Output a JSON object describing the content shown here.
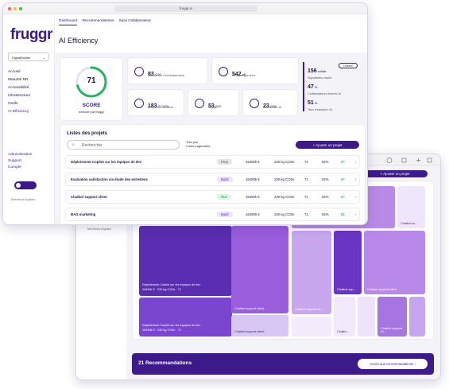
{
  "front": {
    "url": "fruggr.io",
    "tabs": [
      "Dashboard",
      "Recommendations",
      "Suivi Collaborateur"
    ],
    "logo": "fruggr",
    "org": "DigitalBuilder",
    "menu": [
      "Accueil",
      "Maturité NR",
      "Accessibilité",
      "Infrastructure",
      "Outils",
      "AI Efficiency"
    ],
    "footer_menu": [
      "Administration",
      "Support",
      "Compte"
    ],
    "legal": "Mentions légales",
    "title": "AI Efficiency",
    "score": {
      "value": "71",
      "label": "SCORE",
      "caption": "mesuré par fruggr"
    },
    "stats": [
      {
        "value": "83",
        "unit": "/100",
        "label": "Niveau sur l'investissement"
      },
      {
        "value": "542",
        "unit": "k€",
        "label": "Coûts engendrés"
      },
      {
        "value": "183",
        "unit": "T CO2e",
        "label": "Empreinte carbone"
      },
      {
        "value": "53",
        "unit": "/100",
        "label": "Usage"
      },
      {
        "value": "23",
        "unit": "/100",
        "label": "Conformité IA"
      }
    ],
    "kpis": [
      {
        "value": "156",
        "unit": "collab.",
        "label": "Signataires charte"
      },
      {
        "value": "47",
        "unit": "%",
        "label": "Collaborateurs formés IA"
      },
      {
        "value": "51",
        "unit": "%",
        "label": "Taux d'adoption IA"
      }
    ],
    "details": "Détails",
    "projects": {
      "title": "Listes des projets",
      "search": "Rechercher",
      "sort_label": "Trier par",
      "sort_value": "Coûts engendrés",
      "add": "+ Ajouter un projet",
      "rows": [
        {
          "name": "Déploiement Copilot sur les équipes de dev",
          "status": "Prep",
          "cost": "15490k €",
          "co2": "230 kg CO2e",
          "score": "71",
          "pct": "92%",
          "n": "87"
        },
        {
          "name": "Evaluation satisfaction via étude des entretiens",
          "status": "Build",
          "cost": "15490k €",
          "co2": "230 kg CO2e",
          "score": "71",
          "pct": "92%",
          "n": "87"
        },
        {
          "name": "Chatbot support client",
          "status": "Run",
          "cost": "15490k €",
          "co2": "230 kg CO2e",
          "score": "71",
          "pct": "92%",
          "n": "87"
        },
        {
          "name": "BAG marketing",
          "status": "Build",
          "cost": "15490k €",
          "co2": "230 kg CO2e",
          "score": "71",
          "pct": "92%",
          "n": "81"
        }
      ]
    }
  },
  "back": {
    "add": "+ Ajouter un projet",
    "legal": "Mentions légales",
    "treemap": {
      "main": {
        "name": "Déploiement Copilot sur les équipes de dev",
        "cost": "15490k €",
        "co2": "230 kg CO2e",
        "score": "71"
      },
      "second": {
        "name": "Déploiement Copilot sur les équipes de dev",
        "cost": "15490k €",
        "co2": "230 kg CO2e",
        "score": "71"
      },
      "labels": [
        "Chatbot su...",
        "Chatbot support client...",
        "Chatbot support client...",
        "Chatbot support cli...",
        "Chatbot sup...",
        "Chatbot support client",
        "Chatbo...",
        "Chatbot support cli..."
      ]
    },
    "recommendations": "21 Recommandations",
    "cta": "Accès aux recommandations"
  }
}
